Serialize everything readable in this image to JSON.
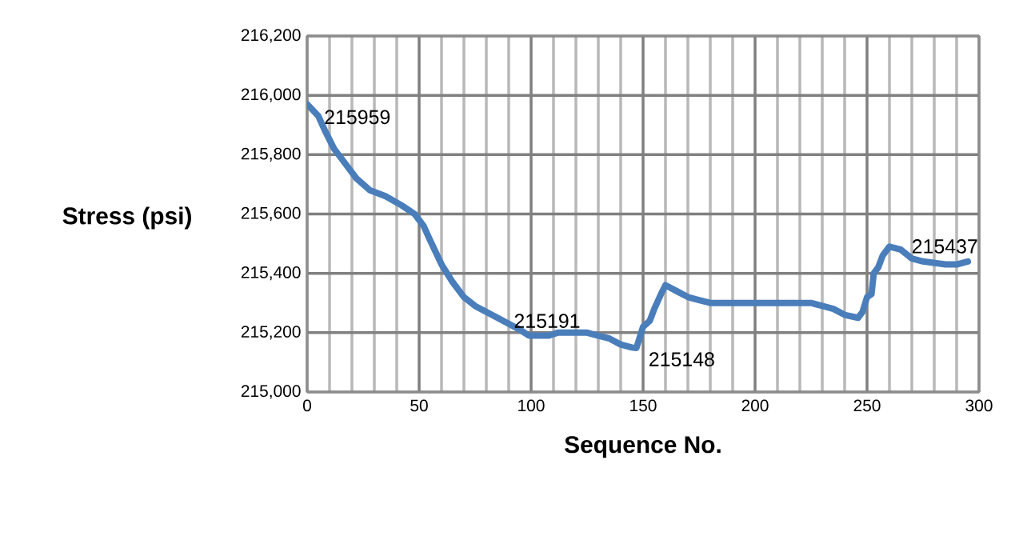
{
  "chart_data": {
    "type": "line",
    "xlabel": "Sequence No.",
    "ylabel": "Stress (psi)",
    "x": [
      0,
      5,
      8,
      12,
      18,
      22,
      28,
      35,
      42,
      48,
      52,
      55,
      60,
      65,
      70,
      75,
      80,
      85,
      90,
      95,
      99,
      102,
      108,
      112,
      125,
      130,
      135,
      140,
      145,
      147,
      150,
      153,
      155,
      158,
      160,
      165,
      170,
      175,
      180,
      220,
      225,
      230,
      235,
      240,
      246,
      248,
      250,
      252,
      253,
      255,
      257,
      260,
      265,
      270,
      275,
      285,
      290,
      295
    ],
    "series": [
      {
        "color": "#4a7ebb",
        "values": [
          215970,
          215930,
          215880,
          215820,
          215760,
          215720,
          215680,
          215660,
          215630,
          215600,
          215560,
          215510,
          215430,
          215370,
          215320,
          215290,
          215270,
          215250,
          215230,
          215210,
          215190,
          215190,
          215190,
          215200,
          215200,
          215190,
          215180,
          215160,
          215150,
          215148,
          215220,
          215240,
          215280,
          215330,
          215360,
          215340,
          215320,
          215310,
          215300,
          215300,
          215300,
          215290,
          215280,
          215260,
          215250,
          215270,
          215320,
          215330,
          215400,
          215420,
          215460,
          215490,
          215480,
          215450,
          215440,
          215430,
          215430,
          215440
        ]
      }
    ],
    "xlim": [
      0,
      300
    ],
    "xticks": [
      0,
      50,
      100,
      150,
      200,
      250,
      300
    ],
    "ylim": [
      215000,
      216200
    ],
    "yticks": [
      {
        "value": 215000,
        "label": "215,000"
      },
      {
        "value": 215200,
        "label": "215,200"
      },
      {
        "value": 215400,
        "label": "215,400"
      },
      {
        "value": 215600,
        "label": "215,600"
      },
      {
        "value": 215800,
        "label": "215,800"
      },
      {
        "value": 216000,
        "label": "216,000"
      },
      {
        "value": 216200,
        "label": "216,200"
      }
    ],
    "annotations": [
      {
        "text": "215959",
        "x": 0,
        "y": 215959
      },
      {
        "text": "215191",
        "x": 100,
        "y": 215191
      },
      {
        "text": "215148",
        "x": 147,
        "y": 215148
      },
      {
        "text": "215437",
        "x": 295,
        "y": 215437
      }
    ],
    "grid": true,
    "marker": "none",
    "line_style": "solid"
  }
}
